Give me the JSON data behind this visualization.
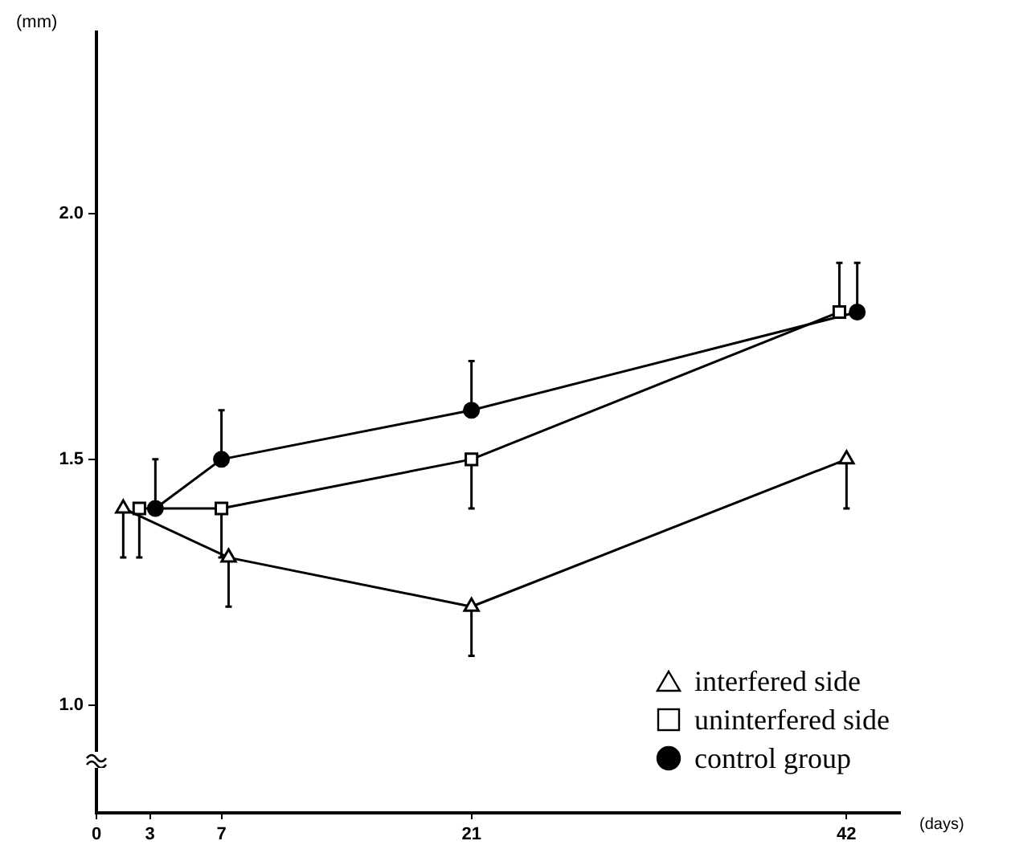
{
  "chart_data": {
    "type": "line",
    "xlabel": "(days)",
    "ylabel": "(mm)",
    "xlim": [
      0,
      45
    ],
    "xticks": [
      0,
      3,
      7,
      21,
      42
    ],
    "ylim": [
      0.78,
      2.37
    ],
    "yticks": [
      {
        "value": 1,
        "label": "1.0"
      },
      {
        "value": 1.5,
        "label": "1.5"
      },
      {
        "value": 2,
        "label": "2.0"
      }
    ],
    "grid": false,
    "legend": "bottom right",
    "line_style": "solid",
    "series": [
      {
        "name": "interfered side",
        "color": "#000000",
        "marker": "triangle",
        "x": [
          1.5,
          7.4,
          21,
          42
        ],
        "values": [
          1.4,
          1.3,
          1.2,
          1.5
        ],
        "errors": [
          [
            1.3,
            1.4
          ],
          [
            1.2,
            1.3
          ],
          [
            1.1,
            1.2
          ],
          [
            1.4,
            1.5
          ]
        ]
      },
      {
        "name": "uninterfered side",
        "color": "#000000",
        "marker": "square",
        "x": [
          2.4,
          7,
          21,
          41.6
        ],
        "values": [
          1.4,
          1.4,
          1.5,
          1.8
        ],
        "errors": [
          [
            1.3,
            1.4
          ],
          [
            1.3,
            1.4
          ],
          [
            1.4,
            1.5
          ],
          [
            1.8,
            1.9
          ]
        ]
      },
      {
        "name": "control group",
        "color": "#000000",
        "marker": "circle",
        "x": [
          3.3,
          7,
          21,
          42.6
        ],
        "values": [
          1.4,
          1.5,
          1.6,
          1.8
        ],
        "errors": [
          [
            1.4,
            1.5
          ],
          [
            1.5,
            1.6
          ],
          [
            1.6,
            1.7
          ],
          [
            1.8,
            1.9
          ]
        ]
      }
    ]
  }
}
